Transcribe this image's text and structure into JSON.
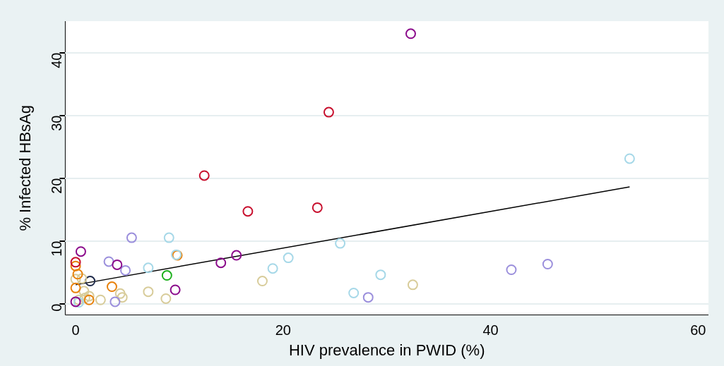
{
  "chart_data": {
    "type": "scatter",
    "xlabel": "HIV prevalence in PWID (%)",
    "ylabel": "% Infected HBsAg",
    "xlim": [
      -1,
      61
    ],
    "ylim": [
      -1.8,
      45
    ],
    "xticks": [
      0,
      20,
      40,
      60
    ],
    "yticks": [
      0,
      10,
      20,
      30,
      40
    ],
    "grid": "y",
    "legend": false,
    "marker": "circle",
    "series": [
      {
        "color": "#c8102e",
        "x": [
          0,
          12.4,
          16.6,
          23.3,
          24.4
        ],
        "values": [
          6.6,
          20.4,
          14.7,
          15.3,
          30.5
        ]
      },
      {
        "color": "#8b0a8b",
        "x": [
          0.5,
          32.3,
          4,
          14,
          15.5,
          9.6,
          0
        ],
        "values": [
          8.3,
          43,
          6.2,
          6.5,
          7.7,
          2.2,
          0.3
        ]
      },
      {
        "color": "#9b8fdc",
        "x": [
          5.4,
          3.2,
          4.8,
          3.8,
          28.2,
          42,
          45.5
        ],
        "values": [
          10.5,
          6.7,
          5.3,
          0.3,
          1,
          5.4,
          6.3
        ]
      },
      {
        "color": "#a6d8e8",
        "x": [
          9,
          7,
          9.7,
          19,
          20.5,
          25.5,
          26.8,
          29.4,
          53.4,
          0.3
        ],
        "values": [
          10.5,
          5.7,
          7.8,
          5.6,
          7.3,
          9.6,
          1.7,
          4.6,
          23.1,
          0.2
        ]
      },
      {
        "color": "#e8820c",
        "x": [
          0,
          0.2,
          0,
          3.5,
          9.8,
          1.3
        ],
        "values": [
          6,
          4.7,
          2.5,
          2.7,
          7.7,
          0.6
        ]
      },
      {
        "color": "#d8cc9a",
        "x": [
          0,
          0.6,
          0.8,
          1.3,
          2.4,
          4.3,
          4.5,
          7,
          8.7,
          18,
          32.5,
          0.3,
          0.9
        ],
        "values": [
          3.9,
          4,
          2,
          1.2,
          0.6,
          1.6,
          1,
          1.9,
          0.8,
          3.6,
          3,
          0.6,
          0.9
        ]
      },
      {
        "color": "#1db01d",
        "x": [
          8.8
        ],
        "values": [
          4.5
        ]
      },
      {
        "color": "#1f2a4a",
        "x": [
          1.4
        ],
        "values": [
          3.6
        ]
      },
      {
        "type": "line",
        "color": "#000000",
        "marker": "none",
        "x": [
          0,
          53.4
        ],
        "values": [
          3,
          18.6
        ]
      }
    ]
  }
}
